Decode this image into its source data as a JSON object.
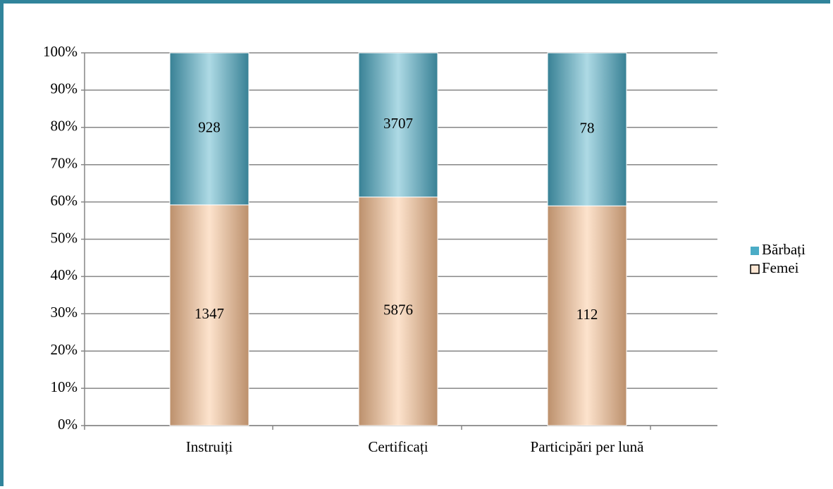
{
  "chart_data": {
    "type": "bar",
    "stacking": "percent",
    "categories": [
      "Instruiți",
      "Certificați",
      "Participări per lună"
    ],
    "series": [
      {
        "name": "Femei",
        "color": "#fac090",
        "values": [
          1347,
          5876,
          112
        ]
      },
      {
        "name": "Bărbați",
        "color": "#4bacc6",
        "values": [
          928,
          3707,
          78
        ]
      }
    ],
    "ylim": [
      0,
      100
    ],
    "yticks": [
      {
        "value": 0,
        "label": "0%"
      },
      {
        "value": 10,
        "label": "10%"
      },
      {
        "value": 20,
        "label": "20%"
      },
      {
        "value": 30,
        "label": "30%"
      },
      {
        "value": 40,
        "label": "40%"
      },
      {
        "value": 50,
        "label": "50%"
      },
      {
        "value": 60,
        "label": "60%"
      },
      {
        "value": 70,
        "label": "70%"
      },
      {
        "value": 80,
        "label": "80%"
      },
      {
        "value": 90,
        "label": "90%"
      },
      {
        "value": 100,
        "label": "100%"
      }
    ],
    "grid": true,
    "legend": "right"
  }
}
